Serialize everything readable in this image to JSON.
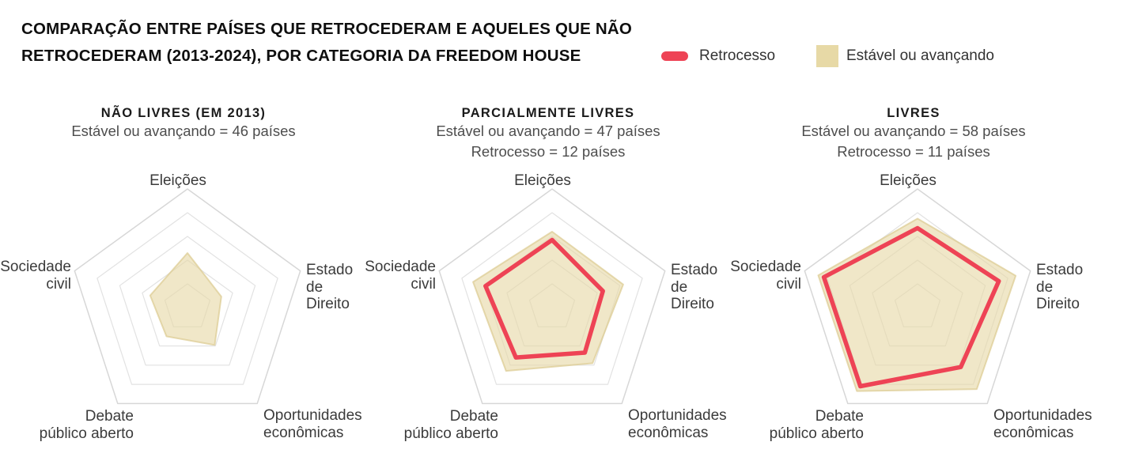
{
  "header": {
    "title_line1": "COMPARAÇÃO ENTRE PAÍSES QUE RETROCEDERAM E AQUELES QUE NÃO",
    "title_line2": "RETROCEDERAM (2013-2024), POR CATEGORIA DA FREEDOM HOUSE"
  },
  "legend": {
    "retrocesso_label": "Retrocesso",
    "estavel_label": "Estável ou avançando"
  },
  "colors": {
    "retrocesso": "#ee4355",
    "estavel": "#e7d9a6",
    "estavel_edge": "#dbcb90",
    "grid_outer": "#d7d7d7",
    "grid_inner": "#e2e2e2"
  },
  "chart_data": [
    {
      "type": "radar",
      "title": "NÃO LIVRES (EM 2013)",
      "subtitle_line1": "Estável ou avançando = 46 países",
      "subtitle_line2": "",
      "axes": [
        "Eleições",
        "Estado\nde\nDireito",
        "Oportunidades\neconômicas",
        "Debate\npúblico aberto",
        "Sociedade\ncivil"
      ],
      "scale": {
        "rings": 5,
        "max": 1
      },
      "series": [
        {
          "name": "Estável ou avançando",
          "render": "area",
          "color": "#e7d9a6",
          "values": [
            0.46,
            0.3,
            0.39,
            0.3,
            0.33
          ]
        }
      ]
    },
    {
      "type": "radar",
      "title": "PARCIALMENTE LIVRES",
      "subtitle_line1": "Estável ou avançando = 47 países",
      "subtitle_line2": "Retrocesso = 12 países",
      "axes": [
        "Eleições",
        "Estado\nde\nDireito",
        "Oportunidades\neconômicas",
        "Debate\npúblico aberto",
        "Sociedade\ncivil"
      ],
      "scale": {
        "rings": 5,
        "max": 1
      },
      "series": [
        {
          "name": "Estável ou avançando",
          "render": "area",
          "color": "#e7d9a6",
          "values": [
            0.64,
            0.63,
            0.58,
            0.66,
            0.7
          ]
        },
        {
          "name": "Retrocesso",
          "render": "line",
          "color": "#ee4355",
          "values": [
            0.57,
            0.45,
            0.47,
            0.52,
            0.59
          ]
        }
      ]
    },
    {
      "type": "radar",
      "title": "LIVRES",
      "subtitle_line1": "Estável ou avançando = 58 países",
      "subtitle_line2": "Retrocesso = 11 países",
      "axes": [
        "Eleições",
        "Estado\nde\nDireito",
        "Oportunidades\neconômicas",
        "Debate\npúblico aberto",
        "Sociedade\ncivil"
      ],
      "scale": {
        "rings": 5,
        "max": 1
      },
      "series": [
        {
          "name": "Estável ou avançando",
          "render": "area",
          "color": "#e7d9a6",
          "values": [
            0.75,
            0.87,
            0.85,
            0.87,
            0.88
          ]
        },
        {
          "name": "Retrocesso",
          "render": "line",
          "color": "#ee4355",
          "values": [
            0.67,
            0.72,
            0.62,
            0.82,
            0.83
          ]
        }
      ]
    }
  ]
}
